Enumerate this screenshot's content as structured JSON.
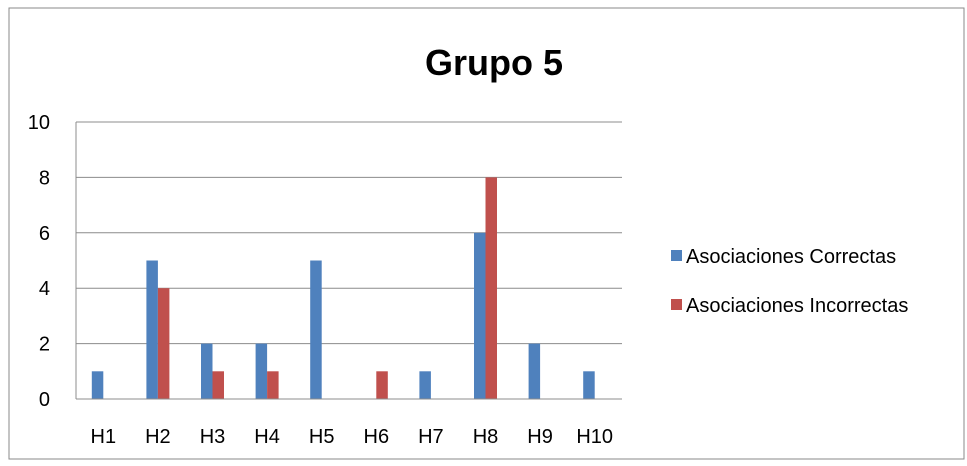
{
  "chart_data": {
    "type": "bar",
    "title": "Grupo 5",
    "xlabel": "",
    "ylabel": "",
    "categories": [
      "H1",
      "H2",
      "H3",
      "H4",
      "H5",
      "H6",
      "H7",
      "H8",
      "H9",
      "H10"
    ],
    "series": [
      {
        "name": "Asociaciones Correctas",
        "color": "#4F81BD",
        "values": [
          1,
          5,
          2,
          2,
          5,
          0,
          1,
          6,
          2,
          1
        ]
      },
      {
        "name": "Asociaciones Incorrectas",
        "color": "#C0504D",
        "values": [
          0,
          4,
          1,
          1,
          0,
          1,
          0,
          8,
          0,
          0
        ]
      }
    ],
    "ylim": [
      0,
      10
    ],
    "yticks": [
      "0",
      "2",
      "4",
      "6",
      "8",
      "10"
    ],
    "grid": true,
    "legend_position": "right"
  }
}
